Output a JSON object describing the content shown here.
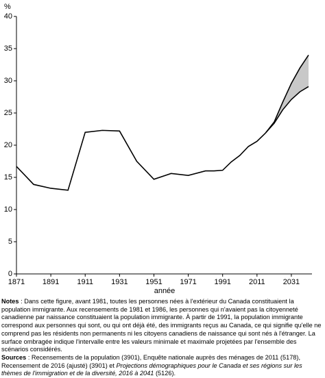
{
  "chart_data": {
    "type": "line",
    "y_label": "%",
    "x_label": "année",
    "x": [
      1871,
      1881,
      1891,
      1901,
      1911,
      1921,
      1931,
      1941,
      1951,
      1961,
      1971,
      1981,
      1986,
      1991,
      1996,
      2001,
      2006,
      2011,
      2016,
      2021,
      2026,
      2031,
      2036,
      2041
    ],
    "series": [
      {
        "color": "#000000",
        "values": [
          16.7,
          13.9,
          13.3,
          13.0,
          22.0,
          22.3,
          22.2,
          17.5,
          14.7,
          15.6,
          15.3,
          16.0,
          16.0,
          16.1,
          17.4,
          18.4,
          19.8,
          20.6,
          21.9,
          null,
          null,
          null,
          null,
          null
        ]
      },
      {
        "color": "#000000",
        "values": [
          null,
          null,
          null,
          null,
          null,
          null,
          null,
          null,
          null,
          null,
          null,
          null,
          null,
          null,
          null,
          null,
          null,
          null,
          21.9,
          23.4,
          25.5,
          27.1,
          28.3,
          29.1
        ]
      },
      {
        "color": "#000000",
        "values": [
          null,
          null,
          null,
          null,
          null,
          null,
          null,
          null,
          null,
          null,
          null,
          null,
          null,
          null,
          null,
          null,
          null,
          null,
          21.9,
          23.6,
          26.7,
          29.6,
          32.0,
          34.0
        ]
      }
    ],
    "band_color": "#c8c8c8",
    "xlim": [
      1871,
      2043
    ],
    "xticks": [
      1871,
      1891,
      1911,
      1931,
      1951,
      1971,
      1991,
      2011,
      2031
    ],
    "ylim": [
      0,
      40
    ],
    "yticks": [
      0,
      5,
      10,
      15,
      20,
      25,
      30,
      35,
      40
    ],
    "grid": false
  },
  "notes": {
    "label": "Notes",
    "text": " : Dans cette figure, avant 1981, toutes les personnes nées à l'extérieur du Canada constituaient la population immigrante. Aux recensements de 1981 et 1986, les personnes qui n'avaient pas la citoyenneté canadienne par naissance constituaient la population immigrante. À partir de 1991, la population immigrante correspond aux personnes qui sont, ou qui ont déjà été, des immigrants reçus au Canada, ce qui signifie qu'elle ne comprend pas les résidents non permanents ni les citoyens canadiens de naissance qui sont nés à l'étranger. La surface ombragée indique l'intervalle entre les valeurs minimale et maximale projetées par l'ensemble des scénarios considérés."
  },
  "sources": {
    "label": "Sources",
    "text": " : Recensements de la population (3901), Enquête nationale auprès des ménages de 2011 (5178), Recensement de 2016 (ajusté) (3901) et ",
    "title": "Projections démographiques pour le Canada et ses régions sur les thèmes de l'immigration et de la diversité, 2016 à 2041",
    "end": " (5126)."
  }
}
